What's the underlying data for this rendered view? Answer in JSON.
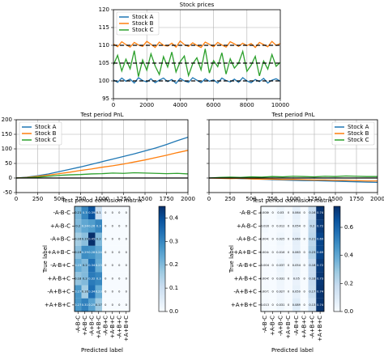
{
  "chart_data": [
    {
      "type": "line",
      "title": "Stock prices",
      "legend": "upper left",
      "grid": true,
      "xlim": [
        0,
        10000
      ],
      "xticks": [
        0,
        2000,
        4000,
        6000,
        8000,
        10000
      ],
      "ylim": [
        95,
        120
      ],
      "yticks": [
        95,
        100,
        105,
        110,
        115,
        120
      ],
      "hlines": [
        100,
        105,
        110
      ],
      "hline_style": "dashed",
      "x": [
        0,
        250,
        500,
        750,
        1000,
        1250,
        1500,
        1750,
        2000,
        2250,
        2500,
        2750,
        3000,
        3250,
        3500,
        3750,
        4000,
        4250,
        4500,
        4750,
        5000,
        5250,
        5500,
        5750,
        6000,
        6250,
        6500,
        6750,
        7000,
        7250,
        7500,
        7750,
        8000,
        8250,
        8500,
        8750,
        9000,
        9250,
        9500,
        9750,
        10000
      ],
      "series": [
        {
          "name": "Stock A",
          "color": "#1f77b4",
          "values": [
            100.3,
            99.6,
            100.8,
            99.9,
            100.5,
            99.4,
            100.9,
            100.1,
            99.7,
            100.6,
            99.5,
            100.2,
            100.8,
            99.8,
            100.4,
            99.3,
            100.7,
            100.0,
            99.6,
            100.9,
            100.2,
            99.5,
            100.6,
            99.9,
            100.3,
            99.4,
            100.8,
            100.1,
            99.7,
            100.5,
            99.6,
            100.9,
            100.0,
            99.5,
            100.4,
            99.8,
            100.7,
            99.4,
            100.2,
            100.6,
            99.9
          ]
        },
        {
          "name": "Stock B",
          "color": "#ff7f0e",
          "values": [
            110.4,
            109.6,
            111.0,
            110.2,
            109.5,
            110.8,
            110.1,
            109.7,
            111.1,
            110.3,
            109.4,
            110.9,
            110.0,
            109.8,
            110.6,
            109.5,
            111.2,
            110.2,
            109.7,
            110.7,
            110.0,
            109.4,
            110.9,
            110.3,
            109.6,
            110.8,
            110.1,
            109.5,
            111.0,
            110.4,
            109.7,
            110.6,
            109.9,
            110.5,
            109.4,
            110.8,
            110.2,
            109.6,
            111.1,
            110.0,
            110.5
          ]
        },
        {
          "name": "Stock C",
          "color": "#2ca02c",
          "values": [
            104.5,
            107.2,
            102.8,
            106.1,
            103.4,
            108.5,
            101.2,
            105.9,
            103.0,
            107.6,
            104.2,
            101.8,
            106.8,
            103.9,
            108.1,
            102.5,
            105.4,
            107.0,
            101.5,
            104.8,
            106.5,
            103.1,
            109.0,
            102.2,
            105.7,
            104.0,
            107.9,
            101.9,
            106.2,
            103.6,
            105.0,
            108.3,
            102.7,
            104.4,
            106.9,
            101.4,
            105.6,
            103.3,
            107.4,
            104.1,
            105.2
          ]
        }
      ]
    },
    {
      "type": "line",
      "title": "Test period PnL",
      "legend": "upper left",
      "grid": true,
      "xlim": [
        0,
        2000
      ],
      "xticks": [
        0,
        250,
        500,
        750,
        1000,
        1250,
        1500,
        1750,
        2000
      ],
      "ylim": [
        -50,
        200
      ],
      "yticks": [
        -50,
        0,
        50,
        100,
        150,
        200
      ],
      "hlines": [
        0
      ],
      "hline_style": "solid",
      "x": [
        0,
        125,
        250,
        375,
        500,
        625,
        750,
        875,
        1000,
        1125,
        1250,
        1375,
        1500,
        1625,
        1750,
        1875,
        2000
      ],
      "series": [
        {
          "name": "Stock A",
          "color": "#1f77b4",
          "values": [
            0,
            3,
            8,
            14,
            22,
            30,
            38,
            47,
            56,
            65,
            74,
            83,
            93,
            103,
            115,
            128,
            140
          ]
        },
        {
          "name": "Stock B",
          "color": "#ff7f0e",
          "values": [
            0,
            2,
            6,
            10,
            15,
            20,
            26,
            31,
            37,
            42,
            48,
            55,
            62,
            70,
            78,
            87,
            95
          ]
        },
        {
          "name": "Stock C",
          "color": "#2ca02c",
          "values": [
            0,
            1,
            3,
            6,
            9,
            11,
            12,
            14,
            15,
            17,
            16,
            18,
            17,
            16,
            15,
            16,
            14
          ]
        }
      ]
    },
    {
      "type": "line",
      "title": "Test period PnL",
      "legend": "upper right",
      "grid": true,
      "ytick_labels": false,
      "xlim": [
        0,
        2000
      ],
      "xticks": [
        0,
        250,
        500,
        750,
        1000,
        1250,
        1500,
        1750,
        2000
      ],
      "ylim": [
        -50,
        200
      ],
      "yticks": [
        -50,
        0,
        50,
        100,
        150,
        200
      ],
      "hlines": [
        0
      ],
      "hline_style": "solid",
      "x": [
        0,
        125,
        250,
        375,
        500,
        625,
        750,
        875,
        1000,
        1125,
        1250,
        1375,
        1500,
        1625,
        1750,
        1875,
        2000
      ],
      "series": [
        {
          "name": "Stock A",
          "color": "#1f77b4",
          "values": [
            0,
            1,
            0,
            -2,
            -3,
            -4,
            -6,
            -7,
            -8,
            -9,
            -9,
            -10,
            -11,
            -12,
            -13,
            -14,
            -15
          ]
        },
        {
          "name": "Stock B",
          "color": "#ff7f0e",
          "values": [
            0,
            -1,
            -2,
            -1,
            -3,
            -4,
            -4,
            -5,
            -5,
            -6,
            -7,
            -7,
            -8,
            -8,
            -9,
            -10,
            -10
          ]
        },
        {
          "name": "Stock C",
          "color": "#2ca02c",
          "values": [
            0,
            2,
            3,
            2,
            4,
            3,
            5,
            4,
            6,
            5,
            4,
            6,
            5,
            7,
            6,
            5,
            5
          ]
        }
      ]
    },
    {
      "type": "heatmap",
      "title": "Test period confusion matrix",
      "xlabel": "Predicted label",
      "ylabel": "True label",
      "categories": [
        "-A-B-C",
        "+A-B-C",
        "-A+B-C",
        "+A+B-C",
        "-A-B+C",
        "+A-B+C",
        "-A+B+C",
        "+A+B+C"
      ],
      "values": [
        [
          0.21,
          0.3,
          0.39,
          0.1,
          0,
          0,
          0,
          0
        ],
        [
          0.2,
          0.24,
          0.26,
          0.3,
          0,
          0,
          0,
          0
        ],
        [
          0.16,
          0.19,
          0.45,
          0.2,
          0,
          0,
          0,
          0
        ],
        [
          0.19,
          0.29,
          0.28,
          0.24,
          0,
          0,
          0,
          0
        ],
        [
          0.23,
          0.2,
          0.34,
          0.23,
          0,
          0,
          0,
          0
        ],
        [
          0.18,
          0.2,
          0.32,
          0.3,
          0,
          0,
          0,
          0
        ],
        [
          0.27,
          0.16,
          0.34,
          0.23,
          0,
          0,
          0,
          0
        ],
        [
          0.27,
          0.31,
          0.25,
          0.17,
          0,
          0,
          0,
          0
        ]
      ],
      "clim": [
        0,
        0.45
      ],
      "cticks": [
        {
          "value": 0,
          "label": "0.0"
        },
        0.1,
        0.2,
        0.3,
        0.4
      ]
    },
    {
      "type": "heatmap",
      "title": "Test period confusion matrix",
      "xlabel": "Predicted label",
      "ylabel": "True label",
      "categories": [
        "-A-B-C",
        "+A-B-C",
        "-A+B-C",
        "+A+B-C",
        "-A-B+C",
        "+A-B+C",
        "-A+B+C",
        "+A+B+C"
      ],
      "values": [
        [
          0.0086,
          0,
          0.03,
          0,
          0.064,
          0,
          0.16,
          0.74
        ],
        [
          0.016,
          0,
          0.012,
          0,
          0.054,
          0,
          0.2,
          0.72
        ],
        [
          0.0043,
          0,
          0.025,
          0,
          0.069,
          0,
          0.21,
          0.69
        ],
        [
          0.0044,
          0,
          0.016,
          0,
          0.063,
          0,
          0.23,
          0.69
        ],
        [
          0.004,
          0,
          0.037,
          0,
          0.054,
          0,
          0.18,
          0.72
        ],
        [
          0.0045,
          0,
          0.031,
          0,
          0.05,
          0,
          0.18,
          0.73
        ],
        [
          0.0072,
          0,
          0.027,
          0,
          0.059,
          0,
          0.17,
          0.74
        ],
        [
          0.013,
          0,
          0.031,
          0,
          0.089,
          0,
          0.13,
          0.74
        ]
      ],
      "clim": [
        0,
        0.75
      ],
      "cticks": [
        {
          "value": 0,
          "label": "0.0"
        },
        0.2,
        0.4,
        0.6
      ]
    }
  ]
}
